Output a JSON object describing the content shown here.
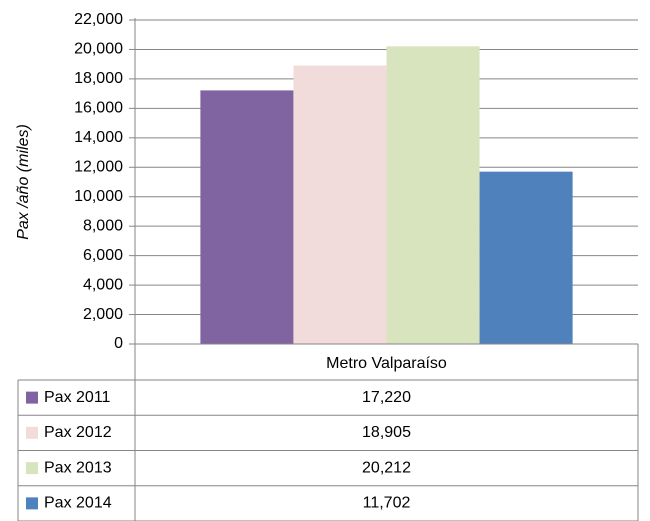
{
  "chart_data": {
    "type": "bar",
    "y_axis_label": "Pax /año (miles)",
    "categories": [
      "Metro Valparaíso"
    ],
    "series": [
      {
        "name": "Pax 2011",
        "color": "#8064a2",
        "values": [
          17220
        ],
        "value_labels": [
          "17,220"
        ]
      },
      {
        "name": "Pax 2012",
        "color": "#f2dcdb",
        "values": [
          18905
        ],
        "value_labels": [
          "18,905"
        ]
      },
      {
        "name": "Pax 2013",
        "color": "#d7e4bd",
        "values": [
          20212
        ],
        "value_labels": [
          "20,212"
        ]
      },
      {
        "name": "Pax 2014",
        "color": "#4f81bd",
        "values": [
          11702
        ],
        "value_labels": [
          "11,702"
        ]
      }
    ],
    "ylim": [
      0,
      22000
    ],
    "yticks": [
      0,
      {
        "value": 2000,
        "label": "2,000"
      },
      {
        "value": 4000,
        "label": "4,000"
      },
      {
        "value": 6000,
        "label": "6,000"
      },
      {
        "value": 8000,
        "label": "8,000"
      },
      {
        "value": 10000,
        "label": "10,000"
      },
      {
        "value": 12000,
        "label": "12,000"
      },
      {
        "value": 14000,
        "label": "14,000"
      },
      {
        "value": 16000,
        "label": "16,000"
      },
      {
        "value": 18000,
        "label": "18,000"
      },
      {
        "value": 20000,
        "label": "20,000"
      },
      {
        "value": 22000,
        "label": "22,000"
      }
    ],
    "grid": true,
    "data_table": true
  }
}
